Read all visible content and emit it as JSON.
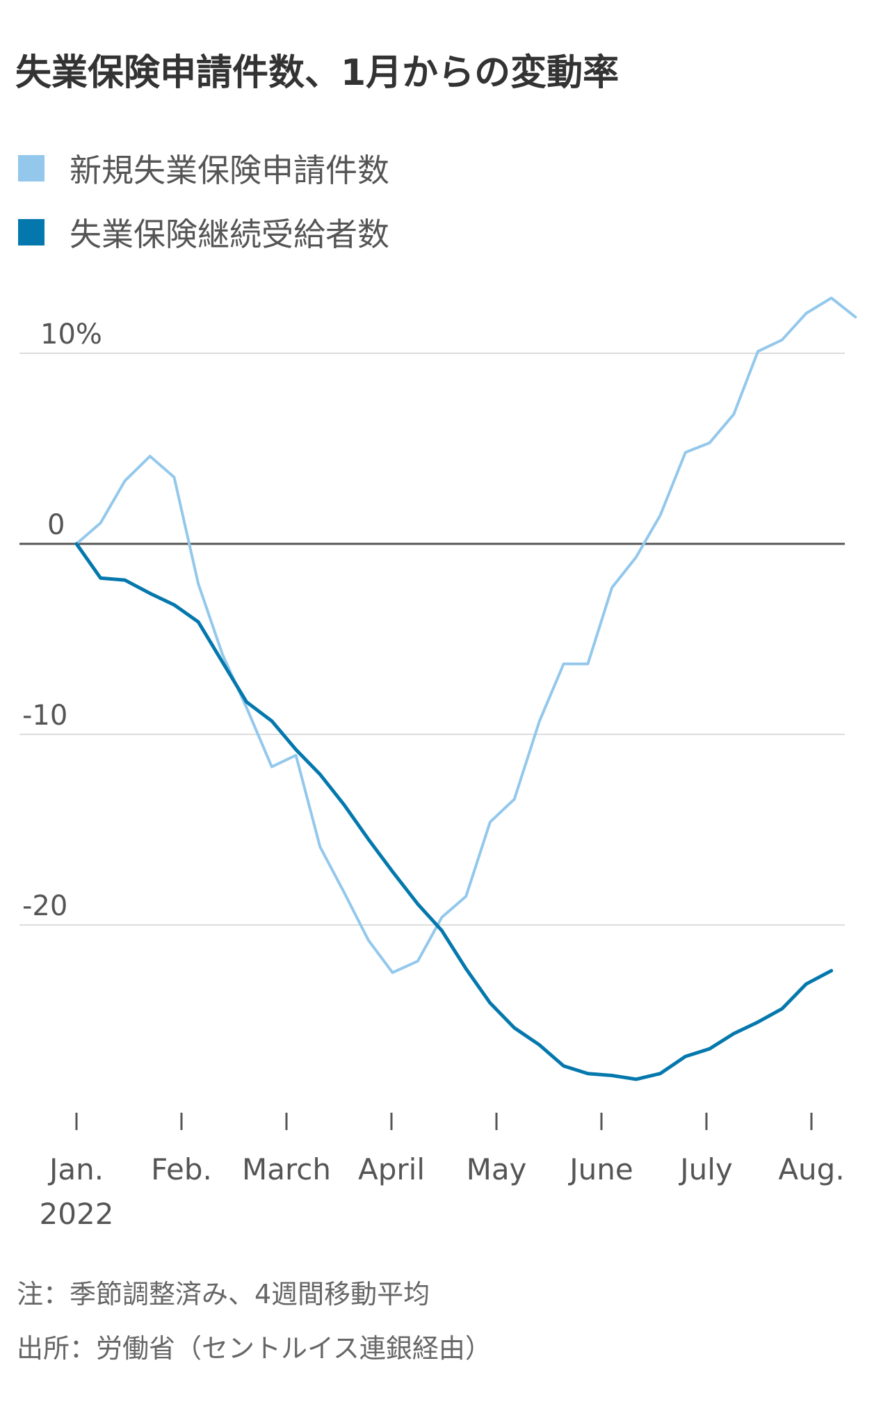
{
  "title": "失業保険申請件数、1月からの変動率",
  "legend": [
    {
      "label": "新規失業保険申請件数",
      "color": "#93c8ec"
    },
    {
      "label": "失業保険継続受給者数",
      "color": "#0478ad"
    }
  ],
  "notes": {
    "note": "注：季節調整済み、4週間移動平均",
    "source": "出所：労働省（セントルイス連銀経由）"
  },
  "chart_data": {
    "type": "line",
    "title": "失業保険申請件数、1月からの変動率",
    "xlabel": "",
    "ylabel": "",
    "ylim": [
      -29.5,
      13
    ],
    "xlim": [
      -0.6,
      7.55
    ],
    "yticks": [
      {
        "value": 10,
        "label": "10%"
      },
      {
        "value": 0,
        "label": "0"
      },
      {
        "value": -10,
        "label": "-10"
      },
      {
        "value": -20,
        "label": "-20"
      }
    ],
    "xticks": [
      {
        "value": 0,
        "label": "Jan.",
        "sublabel": "2022"
      },
      {
        "value": 1,
        "label": "Feb.",
        "sublabel": ""
      },
      {
        "value": 2,
        "label": "March",
        "sublabel": ""
      },
      {
        "value": 3,
        "label": "April",
        "sublabel": ""
      },
      {
        "value": 4,
        "label": "May",
        "sublabel": ""
      },
      {
        "value": 5,
        "label": "June",
        "sublabel": ""
      },
      {
        "value": 6,
        "label": "July",
        "sublabel": ""
      },
      {
        "value": 7,
        "label": "Aug.",
        "sublabel": ""
      }
    ],
    "grid": true,
    "series": [
      {
        "name": "新規失業保険申請件数",
        "color": "#93c8ec",
        "x": [
          0,
          0.23,
          0.46,
          0.7,
          0.93,
          1.16,
          1.39,
          1.62,
          1.86,
          2.09,
          2.32,
          2.55,
          2.78,
          3.01,
          3.25,
          3.48,
          3.71,
          3.94,
          4.17,
          4.41,
          4.64,
          4.87,
          5.1,
          5.33,
          5.56,
          5.8,
          6.03,
          6.26,
          6.49,
          6.72,
          6.95,
          7.19,
          7.42
        ],
        "values": [
          0,
          1.1,
          3.3,
          4.6,
          3.5,
          -2.1,
          -5.8,
          -8.6,
          -11.7,
          -11.1,
          -15.9,
          -18.3,
          -20.8,
          -22.5,
          -21.9,
          -19.6,
          -18.5,
          -14.6,
          -13.4,
          -9.3,
          -6.3,
          -6.3,
          -2.3,
          -0.7,
          1.5,
          4.8,
          5.3,
          6.8,
          10.1,
          10.7,
          12.1,
          12.9,
          11.9
        ]
      },
      {
        "name": "失業保険継続受給者数",
        "color": "#0478ad",
        "x": [
          0,
          0.23,
          0.46,
          0.7,
          0.93,
          1.16,
          1.39,
          1.62,
          1.86,
          2.09,
          2.32,
          2.55,
          2.78,
          3.01,
          3.25,
          3.48,
          3.71,
          3.94,
          4.17,
          4.41,
          4.64,
          4.87,
          5.1,
          5.33,
          5.56,
          5.8,
          6.03,
          6.26,
          6.49,
          6.72,
          6.95,
          7.19,
          7.42
        ],
        "values": [
          0,
          -1.8,
          -1.9,
          -2.6,
          -3.2,
          -4.1,
          -6.2,
          -8.3,
          -9.3,
          -10.8,
          -12.1,
          -13.7,
          -15.5,
          -17.2,
          -18.9,
          -20.3,
          -22.3,
          -24.1,
          -25.4,
          -26.3,
          -27.4,
          -27.8,
          -27.9,
          -28.1,
          -27.8,
          -26.9,
          -26.5,
          -25.7,
          -25.1,
          -24.4,
          -23.1,
          -22.4,
          null
        ]
      }
    ]
  }
}
